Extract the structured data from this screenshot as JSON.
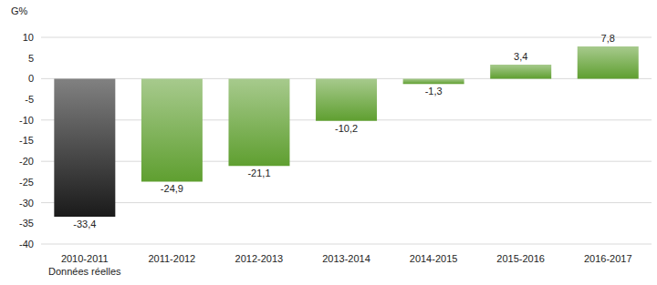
{
  "chart_data": {
    "type": "bar",
    "y_label": "G%",
    "categories": [
      "2010-2011\nDonnées réelles",
      "2011-2012",
      "2012-2013",
      "2013-2014",
      "2014-2015",
      "2015-2016",
      "2016-2017"
    ],
    "values": [
      -33.4,
      -24.9,
      -21.1,
      -10.2,
      -1.3,
      3.4,
      7.8
    ],
    "value_labels": [
      "-33,4",
      "-24,9",
      "-21,1",
      "-10,2",
      "-1,3",
      "3,4",
      "7,8"
    ],
    "colors": [
      "#1a1a1a",
      "#5f9f30",
      "#5f9f30",
      "#5f9f30",
      "#5f9f30",
      "#5f9f30",
      "#5f9f30"
    ],
    "ylim": [
      -40,
      10
    ],
    "yticks": [
      -40,
      -35,
      -30,
      -25,
      -20,
      -15,
      -10,
      -5,
      0,
      5,
      10
    ],
    "grid": true,
    "data_labels": true
  }
}
